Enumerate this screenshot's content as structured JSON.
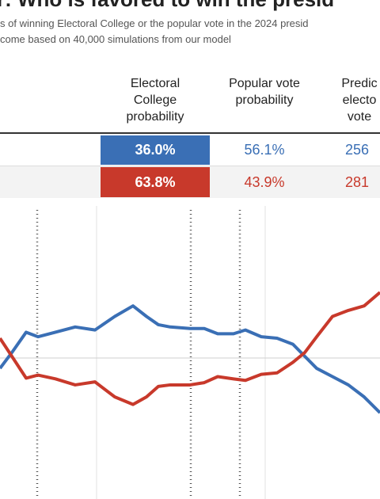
{
  "header": {
    "title": "r: Who is favored to win the presid",
    "subtitle": [
      "s of winning Electoral College or the popular vote in the 2024 presid",
      "come based on 40,000 simulations from our model"
    ]
  },
  "table": {
    "columns": [
      "Electoral College probability",
      "Popular vote probability",
      "Predic electo vote"
    ],
    "rows": [
      [
        "36.0%",
        "56.1%",
        "256"
      ],
      [
        "63.8%",
        "43.9%",
        "281"
      ]
    ]
  },
  "chart_data": {
    "type": "line",
    "xlim": [
      0,
      480
    ],
    "ylim": [
      30,
      70
    ],
    "x": [
      0,
      15,
      33,
      48,
      70,
      95,
      120,
      145,
      168,
      185,
      200,
      215,
      240,
      258,
      275,
      295,
      310,
      330,
      350,
      370,
      385,
      400,
      420,
      440,
      460,
      480
    ],
    "series": [
      {
        "color": "#3a6fb5",
        "values": [
          48.1,
          50.2,
          52.9,
          52.3,
          52.9,
          53.6,
          53.2,
          55.0,
          56.4,
          55.0,
          53.9,
          53.6,
          53.4,
          53.4,
          52.7,
          52.7,
          53.2,
          52.3,
          52.1,
          51.3,
          49.7,
          48.1,
          47.0,
          45.9,
          44.3,
          42.2
        ]
      },
      {
        "color": "#c8392b",
        "values": [
          52.1,
          49.7,
          46.8,
          47.2,
          46.7,
          45.9,
          46.3,
          44.3,
          43.3,
          44.3,
          45.7,
          45.9,
          45.9,
          46.2,
          47.0,
          46.7,
          46.5,
          47.3,
          47.5,
          48.9,
          50.2,
          52.3,
          55.0,
          55.8,
          56.4,
          58.2
        ]
      }
    ]
  }
}
